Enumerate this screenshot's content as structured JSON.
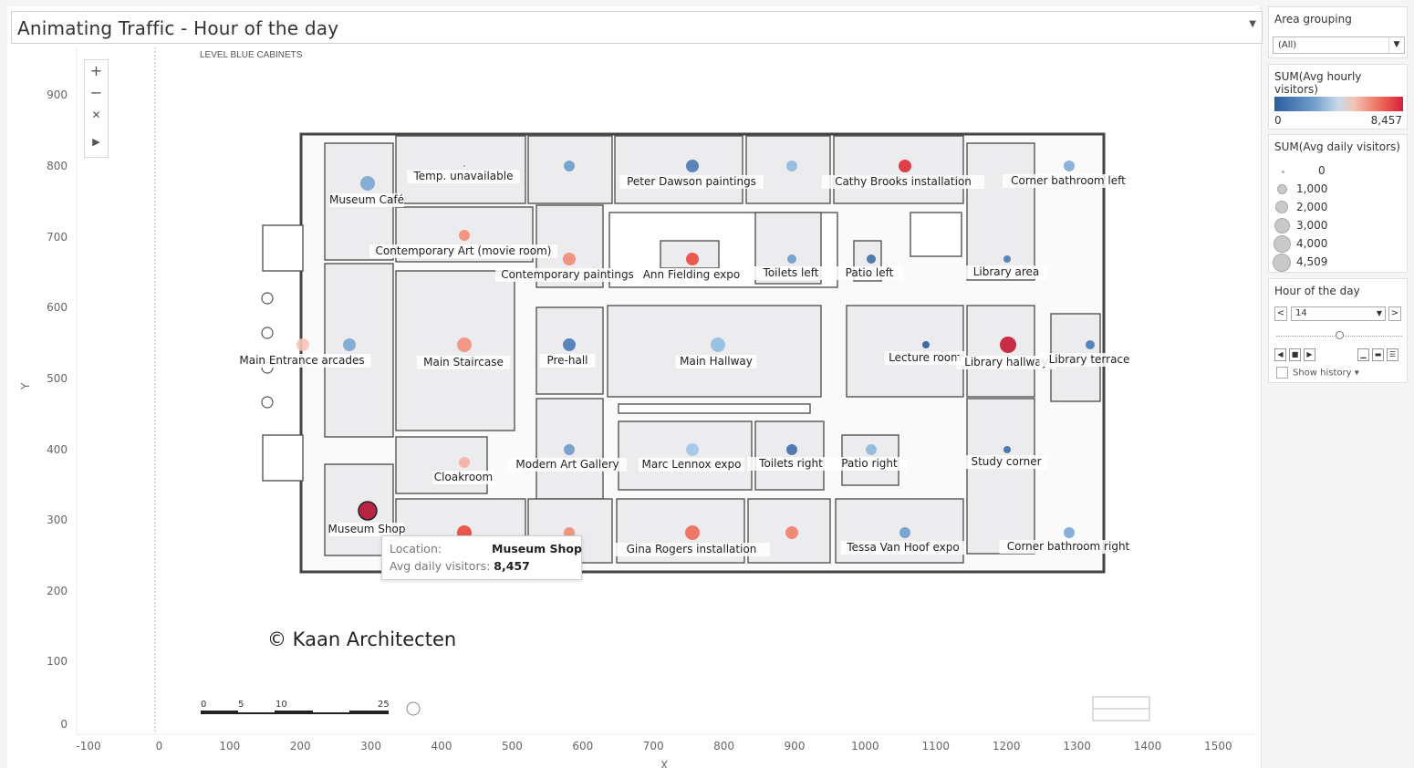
{
  "header": {
    "title": "Animating Traffic - Hour of the day"
  },
  "map": {
    "level_label": "LEVEL BLUE CABINETS",
    "copyright": "© Kaan Architecten",
    "scale_labels": [
      "0",
      "5",
      "10",
      "25"
    ],
    "y_axis_title": "Y",
    "x_axis_title": "X",
    "y_ticks": [
      "900",
      "800",
      "700",
      "600",
      "500",
      "400",
      "300",
      "200",
      "100",
      "0"
    ],
    "x_ticks": [
      "-100",
      "0",
      "100",
      "200",
      "300",
      "400",
      "500",
      "600",
      "700",
      "800",
      "900",
      "1000",
      "1100",
      "1200",
      "1300",
      "1400",
      "1500"
    ],
    "locations": [
      {
        "name": "Museum Café",
        "color": "#7aa6d3"
      },
      {
        "name": "Temp. unavailable",
        "color": "#7aa6d3"
      },
      {
        "name": "",
        "color": "#6d9cc9"
      },
      {
        "name": "Peter Dawson paintings",
        "color": "#4a7ab5"
      },
      {
        "name": "",
        "color": "#8db9de"
      },
      {
        "name": "Cathy Brooks installation",
        "color": "#dc2c35"
      },
      {
        "name": "Corner bathroom left",
        "color": "#7eaad6"
      },
      {
        "name": "Contemporary Art (movie room)",
        "color": "#f28c76"
      },
      {
        "name": "Contemporary paintings",
        "color": "#f28c76"
      },
      {
        "name": "Ann Fielding expo",
        "color": "#ea4a3c"
      },
      {
        "name": "Toilets left",
        "color": "#6d9cc9"
      },
      {
        "name": "Patio left",
        "color": "#3f6ea8"
      },
      {
        "name": "Library area",
        "color": "#4a7ab5"
      },
      {
        "name": "Main Entrance arcades",
        "color": "#f5c4b7"
      },
      {
        "name": "",
        "color": "#7aa6d3"
      },
      {
        "name": "Main Staircase",
        "color": "#f2907a"
      },
      {
        "name": "Pre-hall",
        "color": "#4a7ab5"
      },
      {
        "name": "Main Hallway",
        "color": "#8fbce0"
      },
      {
        "name": "Lecture room",
        "color": "#2e5d99"
      },
      {
        "name": "Library hallway",
        "color": "#c41a30"
      },
      {
        "name": "Library terrace",
        "color": "#4a7ab5"
      },
      {
        "name": "Cloakroom",
        "color": "#f5b0a0"
      },
      {
        "name": "Modern Art Gallery",
        "color": "#6d9cc9"
      },
      {
        "name": "Marc Lennox expo",
        "color": "#9fc6e6"
      },
      {
        "name": "Toilets right",
        "color": "#3f6ea8"
      },
      {
        "name": "Patio right",
        "color": "#8db9de"
      },
      {
        "name": "Study corner",
        "color": "#3f6ea8"
      },
      {
        "name": "Museum Shop",
        "color": "#b01030"
      },
      {
        "name": "",
        "color": "#e8463a"
      },
      {
        "name": "",
        "color": "#f28c76"
      },
      {
        "name": "Gina Rogers installation",
        "color": "#ee6a56"
      },
      {
        "name": "",
        "color": "#f28068"
      },
      {
        "name": "Tessa Van Hoof expo",
        "color": "#6d9cc9"
      },
      {
        "name": "Corner bathroom right",
        "color": "#7aa6d3"
      }
    ]
  },
  "tooltip": {
    "location_key": "Location:",
    "location_value": "Museum Shop",
    "visitors_key": "Avg daily visitors:",
    "visitors_value": "8,457"
  },
  "filters": {
    "area_grouping": {
      "title": "Area grouping",
      "selected": "(All)"
    },
    "hourly": {
      "title": "SUM(Avg hourly visitors)",
      "min": "0",
      "max": "8,457"
    },
    "daily": {
      "title": "SUM(Avg daily visitors)",
      "entries": [
        "0",
        "1,000",
        "2,000",
        "3,000",
        "4,000",
        "4,509"
      ]
    },
    "hour": {
      "title": "Hour of the day",
      "value": "14",
      "show_history": "Show history"
    }
  }
}
